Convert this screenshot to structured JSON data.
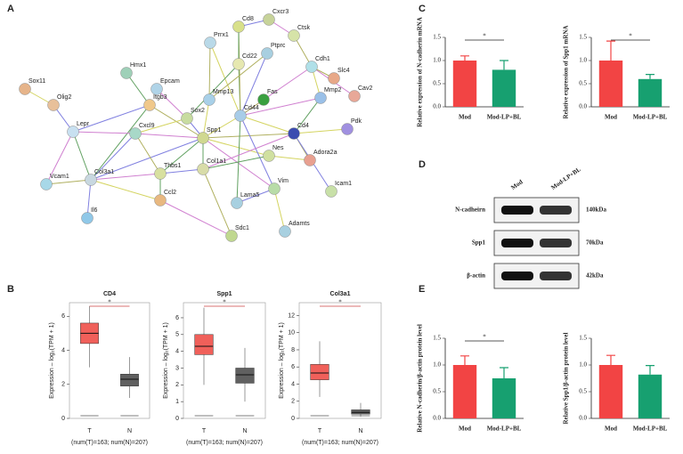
{
  "panel_labels": [
    "A",
    "B",
    "C",
    "D",
    "E"
  ],
  "network": {
    "nodes": [
      "Cd8",
      "Cxcr3",
      "Prrx1",
      "Cd22",
      "Ptprc",
      "Ctsk",
      "Hmx1",
      "Epcam",
      "Sox11",
      "Olig2",
      "Itgb3",
      "Mmp13",
      "Cd44",
      "Sox2",
      "Cdh1",
      "Cxcl9",
      "Spp1",
      "Col1a1",
      "Lepr",
      "Fas",
      "Mmp2",
      "Thbs1",
      "Col3a1",
      "Cd4",
      "Adora2a",
      "Pdk",
      "Vim",
      "Lama5",
      "Icam1",
      "Nes",
      "Adamts",
      "Sdc1",
      "Ccl2",
      "Vcam1",
      "Il6",
      "Cav2",
      "Slc4"
    ]
  },
  "blot": {
    "columns": [
      "Mod",
      "Mod-LP+BL"
    ],
    "rows": [
      {
        "name": "N-cadheirn",
        "size": "140kDa"
      },
      {
        "name": "Spp1",
        "size": "70kDa"
      },
      {
        "name": "β-actin",
        "size": "42kDa"
      }
    ]
  },
  "chart_data": [
    {
      "type": "box",
      "title": "CD4",
      "y_label": "Expression – log₂(TPM + 1)",
      "categories": [
        "T",
        "N"
      ],
      "colors": [
        "#f0605a",
        "#606060"
      ],
      "boxes": [
        {
          "min": 3.0,
          "q1": 4.4,
          "median": 5.0,
          "q3": 5.6,
          "max": 6.6
        },
        {
          "min": 1.2,
          "q1": 1.9,
          "median": 2.3,
          "q3": 2.6,
          "max": 3.6
        }
      ],
      "ylim": [
        0,
        6.8
      ],
      "yticks": [
        0,
        2,
        4,
        6
      ],
      "significance": "*",
      "footnote": "(num(T)=163; num(N)=207)"
    },
    {
      "type": "box",
      "title": "Spp1",
      "y_label": "Expression – log₂(TPM + 1)",
      "categories": [
        "T",
        "N"
      ],
      "colors": [
        "#f0605a",
        "#606060"
      ],
      "boxes": [
        {
          "min": 2.0,
          "q1": 3.8,
          "median": 4.3,
          "q3": 5.0,
          "max": 6.6
        },
        {
          "min": 1.0,
          "q1": 2.1,
          "median": 2.6,
          "q3": 3.0,
          "max": 4.2
        }
      ],
      "ylim": [
        0,
        6.9
      ],
      "yticks": [
        0,
        1,
        2,
        3,
        4,
        5,
        6
      ],
      "significance": "*",
      "footnote": "(num(T)=163; num(N)=207)"
    },
    {
      "type": "box",
      "title": "Col3a1",
      "y_label": "Expression – log₂(TPM + 1)",
      "categories": [
        "T",
        "N"
      ],
      "colors": [
        "#f0605a",
        "#606060"
      ],
      "boxes": [
        {
          "min": 2.5,
          "q1": 4.5,
          "median": 5.3,
          "q3": 6.3,
          "max": 9.0
        },
        {
          "min": 0.2,
          "q1": 0.5,
          "median": 0.7,
          "q3": 1.0,
          "max": 1.8
        }
      ],
      "ylim": [
        0,
        13.5
      ],
      "yticks": [
        0,
        2,
        4,
        6,
        8,
        10,
        12
      ],
      "significance": "*",
      "footnote": "(num(T)=163; num(N)=207)"
    },
    {
      "type": "bar",
      "y_label": "Relative expression of N-cadherin mRNA",
      "categories": [
        "Mod",
        "Mod-LP+BL"
      ],
      "colors": [
        "#f24444",
        "#17a070"
      ],
      "values": [
        1.0,
        0.8
      ],
      "errors": [
        0.1,
        0.2
      ],
      "ylim": [
        0,
        1.5
      ],
      "yticks": [
        {
          "value": 0,
          "label": "0.0"
        },
        {
          "value": 0.5,
          "label": "0.5"
        },
        {
          "value": 1,
          "label": "1.0"
        },
        {
          "value": 1.5,
          "label": "1.5"
        }
      ],
      "significance": "*"
    },
    {
      "type": "bar",
      "y_label": "Relative expression of Spp1 mRNA",
      "categories": [
        "Mod",
        "Mod-LP+BL"
      ],
      "colors": [
        "#f24444",
        "#17a070"
      ],
      "values": [
        1.0,
        0.6
      ],
      "errors": [
        0.42,
        0.1
      ],
      "ylim": [
        0,
        1.5
      ],
      "yticks": [
        {
          "value": 0,
          "label": "0.0"
        },
        {
          "value": 0.5,
          "label": "0.5"
        },
        {
          "value": 1,
          "label": "1.0"
        },
        {
          "value": 1.5,
          "label": "1.5"
        }
      ],
      "significance": "*"
    },
    {
      "type": "bar",
      "y_label": "Relative N-cadherin/β-actin protein level",
      "categories": [
        "Mod",
        "Mod-LP+BL"
      ],
      "colors": [
        "#f24444",
        "#17a070"
      ],
      "values": [
        1.0,
        0.75
      ],
      "errors": [
        0.17,
        0.2
      ],
      "ylim": [
        0,
        1.5
      ],
      "yticks": [
        {
          "value": 0,
          "label": "0.0"
        },
        {
          "value": 0.5,
          "label": "0.5"
        },
        {
          "value": 1,
          "label": "1.0"
        },
        {
          "value": 1.5,
          "label": "1.5"
        }
      ],
      "significance": "*"
    },
    {
      "type": "bar",
      "y_label": "Relative Spp1/β-actin protein level",
      "categories": [
        "Mod",
        "Mod-LP+BL"
      ],
      "colors": [
        "#f24444",
        "#17a070"
      ],
      "values": [
        1.0,
        0.82
      ],
      "errors": [
        0.18,
        0.17
      ],
      "ylim": [
        0,
        1.5
      ],
      "yticks": [
        {
          "value": 0,
          "label": "0.0"
        },
        {
          "value": 0.5,
          "label": "0.5"
        },
        {
          "value": 1,
          "label": "1.0"
        },
        {
          "value": 1.5,
          "label": "1.5"
        }
      ]
    }
  ]
}
